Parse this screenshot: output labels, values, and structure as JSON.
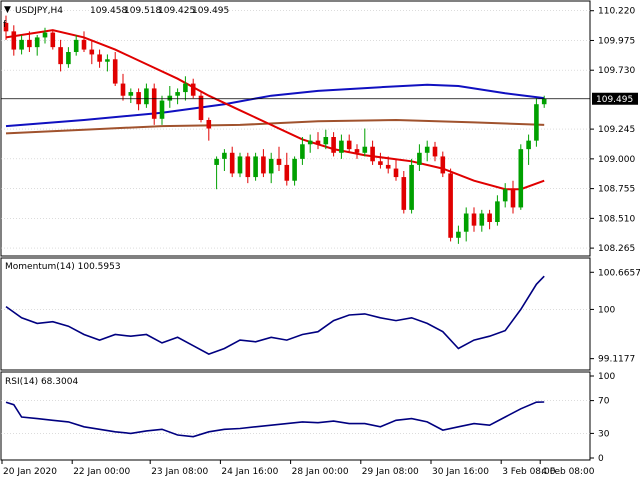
{
  "chart_data": {
    "type": "candlestick",
    "header": {
      "symbol": "USDJPY,H4",
      "ohlc": [
        "109.458",
        "109.518",
        "109.425",
        "109.495"
      ]
    },
    "colors": {
      "up": "#00a000",
      "down": "#e00000",
      "sma_fast": "#e00000",
      "sma_mid": "#1010c0",
      "sma_slow": "#a0522d",
      "indicator": "#000080",
      "grid": "#c8c8c8",
      "frame": "#000000"
    },
    "price_panel": {
      "ylim": [
        108.2,
        110.3
      ],
      "ticks": [
        "110.220",
        "109.975",
        "109.730",
        "109.495",
        "109.245",
        "109.000",
        "108.755",
        "108.510",
        "108.265"
      ],
      "current": "109.495",
      "current_value": 109.495,
      "candles": [
        [
          110.12,
          110.18,
          109.98,
          110.05
        ],
        [
          110.05,
          110.1,
          109.85,
          109.9
        ],
        [
          109.9,
          110.02,
          109.86,
          109.98
        ],
        [
          109.98,
          110.05,
          109.88,
          109.92
        ],
        [
          109.92,
          110.02,
          109.85,
          110.0
        ],
        [
          110.0,
          110.08,
          109.95,
          110.04
        ],
        [
          110.04,
          110.06,
          109.9,
          109.92
        ],
        [
          109.92,
          109.98,
          109.72,
          109.78
        ],
        [
          109.78,
          109.92,
          109.75,
          109.88
        ],
        [
          109.88,
          110.02,
          109.85,
          109.98
        ],
        [
          109.98,
          110.05,
          109.88,
          109.9
        ],
        [
          109.9,
          109.98,
          109.78,
          109.86
        ],
        [
          109.86,
          109.9,
          109.75,
          109.8
        ],
        [
          109.8,
          109.86,
          109.72,
          109.82
        ],
        [
          109.82,
          109.88,
          109.6,
          109.62
        ],
        [
          109.62,
          109.7,
          109.48,
          109.52
        ],
        [
          109.52,
          109.58,
          109.46,
          109.55
        ],
        [
          109.55,
          109.58,
          109.4,
          109.45
        ],
        [
          109.45,
          109.62,
          109.42,
          109.58
        ],
        [
          109.58,
          109.62,
          109.28,
          109.33
        ],
        [
          109.33,
          109.52,
          109.28,
          109.48
        ],
        [
          109.48,
          109.6,
          109.42,
          109.52
        ],
        [
          109.52,
          109.58,
          109.45,
          109.55
        ],
        [
          109.55,
          109.68,
          109.48,
          109.62
        ],
        [
          109.62,
          109.66,
          109.5,
          109.52
        ],
        [
          109.52,
          109.56,
          109.3,
          109.32
        ],
        [
          109.32,
          109.34,
          109.15,
          109.25
        ],
        [
          108.95,
          109.02,
          108.75,
          109.0
        ],
        [
          109.0,
          109.08,
          108.9,
          109.05
        ],
        [
          109.05,
          109.1,
          108.85,
          108.88
        ],
        [
          108.88,
          109.05,
          108.85,
          109.02
        ],
        [
          109.02,
          109.05,
          108.8,
          108.85
        ],
        [
          108.85,
          109.05,
          108.82,
          109.02
        ],
        [
          109.02,
          109.08,
          108.85,
          108.88
        ],
        [
          108.88,
          109.05,
          108.8,
          109.0
        ],
        [
          109.0,
          109.1,
          108.9,
          108.95
        ],
        [
          108.95,
          109.05,
          108.78,
          108.82
        ],
        [
          108.82,
          109.02,
          108.78,
          109.0
        ],
        [
          109.0,
          109.18,
          108.95,
          109.12
        ],
        [
          109.12,
          109.2,
          109.05,
          109.15
        ],
        [
          109.15,
          109.22,
          109.08,
          109.12
        ],
        [
          109.12,
          109.24,
          109.08,
          109.18
        ],
        [
          109.18,
          109.22,
          109.02,
          109.05
        ],
        [
          109.05,
          109.2,
          109.0,
          109.15
        ],
        [
          109.15,
          109.2,
          109.05,
          109.08
        ],
        [
          109.08,
          109.12,
          109.0,
          109.05
        ],
        [
          109.05,
          109.25,
          109.02,
          109.1
        ],
        [
          109.1,
          109.15,
          108.95,
          108.98
        ],
        [
          108.98,
          109.05,
          108.92,
          108.95
        ],
        [
          108.95,
          109.02,
          108.88,
          108.92
        ],
        [
          108.92,
          109.0,
          108.82,
          108.85
        ],
        [
          108.85,
          108.9,
          108.55,
          108.58
        ],
        [
          108.58,
          109.0,
          108.55,
          108.95
        ],
        [
          108.95,
          109.12,
          108.9,
          109.05
        ],
        [
          109.05,
          109.15,
          108.98,
          109.1
        ],
        [
          109.1,
          109.14,
          108.98,
          109.02
        ],
        [
          109.02,
          109.06,
          108.85,
          108.88
        ],
        [
          108.88,
          108.92,
          108.32,
          108.35
        ],
        [
          108.35,
          108.45,
          108.3,
          108.4
        ],
        [
          108.4,
          108.6,
          108.32,
          108.55
        ],
        [
          108.55,
          108.6,
          108.4,
          108.45
        ],
        [
          108.45,
          108.58,
          108.4,
          108.55
        ],
        [
          108.55,
          108.58,
          108.42,
          108.48
        ],
        [
          108.48,
          108.7,
          108.45,
          108.65
        ],
        [
          108.65,
          108.8,
          108.6,
          108.75
        ],
        [
          108.75,
          108.82,
          108.55,
          108.6
        ],
        [
          108.6,
          109.12,
          108.58,
          109.08
        ],
        [
          109.08,
          109.2,
          108.95,
          109.15
        ],
        [
          109.15,
          109.5,
          109.1,
          109.45
        ],
        [
          109.45,
          109.52,
          109.42,
          109.495
        ]
      ],
      "sma_fast": [
        [
          0,
          110.0
        ],
        [
          6,
          110.06
        ],
        [
          10,
          110.0
        ],
        [
          14,
          109.9
        ],
        [
          18,
          109.78
        ],
        [
          22,
          109.66
        ],
        [
          26,
          109.52
        ],
        [
          30,
          109.4
        ],
        [
          34,
          109.28
        ],
        [
          38,
          109.16
        ],
        [
          42,
          109.08
        ],
        [
          46,
          109.03
        ],
        [
          52,
          108.98
        ],
        [
          56,
          108.92
        ],
        [
          60,
          108.82
        ],
        [
          64,
          108.75
        ],
        [
          66,
          108.75
        ],
        [
          69,
          108.82
        ]
      ],
      "sma_mid": [
        [
          0,
          109.27
        ],
        [
          10,
          109.32
        ],
        [
          20,
          109.38
        ],
        [
          28,
          109.45
        ],
        [
          34,
          109.52
        ],
        [
          40,
          109.56
        ],
        [
          48,
          109.59
        ],
        [
          54,
          109.61
        ],
        [
          58,
          109.6
        ],
        [
          64,
          109.54
        ],
        [
          69,
          109.5
        ]
      ],
      "sma_slow": [
        [
          0,
          109.21
        ],
        [
          10,
          109.24
        ],
        [
          20,
          109.27
        ],
        [
          30,
          109.28
        ],
        [
          40,
          109.31
        ],
        [
          50,
          109.32
        ],
        [
          60,
          109.3
        ],
        [
          69,
          109.28
        ]
      ]
    },
    "momentum_panel": {
      "label": "Momentum(14) 100.5953",
      "ylim": [
        98.95,
        100.85
      ],
      "ticks": [
        "100.6657",
        "100",
        "99.1177"
      ],
      "values": [
        [
          0,
          100.05
        ],
        [
          2,
          99.85
        ],
        [
          4,
          99.75
        ],
        [
          6,
          99.78
        ],
        [
          8,
          99.7
        ],
        [
          10,
          99.55
        ],
        [
          12,
          99.45
        ],
        [
          14,
          99.55
        ],
        [
          16,
          99.52
        ],
        [
          18,
          99.55
        ],
        [
          20,
          99.4
        ],
        [
          22,
          99.5
        ],
        [
          24,
          99.35
        ],
        [
          26,
          99.2
        ],
        [
          28,
          99.3
        ],
        [
          30,
          99.45
        ],
        [
          32,
          99.42
        ],
        [
          34,
          99.5
        ],
        [
          36,
          99.45
        ],
        [
          38,
          99.55
        ],
        [
          40,
          99.6
        ],
        [
          42,
          99.8
        ],
        [
          44,
          99.9
        ],
        [
          46,
          99.92
        ],
        [
          48,
          99.85
        ],
        [
          50,
          99.8
        ],
        [
          52,
          99.85
        ],
        [
          54,
          99.75
        ],
        [
          56,
          99.6
        ],
        [
          58,
          99.3
        ],
        [
          60,
          99.45
        ],
        [
          62,
          99.52
        ],
        [
          64,
          99.62
        ],
        [
          66,
          100.0
        ],
        [
          68,
          100.45
        ],
        [
          69,
          100.5953
        ]
      ]
    },
    "rsi_panel": {
      "label": "RSI(14) 68.3004",
      "ylim": [
        0,
        100
      ],
      "ticks": [
        "100",
        "70",
        "30",
        "0"
      ],
      "values": [
        [
          0,
          68
        ],
        [
          1,
          65
        ],
        [
          2,
          50
        ],
        [
          4,
          48
        ],
        [
          6,
          46
        ],
        [
          8,
          44
        ],
        [
          10,
          38
        ],
        [
          12,
          35
        ],
        [
          14,
          32
        ],
        [
          16,
          30
        ],
        [
          18,
          33
        ],
        [
          20,
          35
        ],
        [
          22,
          28
        ],
        [
          24,
          26
        ],
        [
          26,
          32
        ],
        [
          28,
          35
        ],
        [
          30,
          36
        ],
        [
          32,
          38
        ],
        [
          34,
          40
        ],
        [
          36,
          42
        ],
        [
          38,
          44
        ],
        [
          40,
          43
        ],
        [
          42,
          45
        ],
        [
          44,
          42
        ],
        [
          46,
          42
        ],
        [
          48,
          38
        ],
        [
          50,
          46
        ],
        [
          52,
          48
        ],
        [
          54,
          44
        ],
        [
          56,
          34
        ],
        [
          58,
          38
        ],
        [
          60,
          42
        ],
        [
          62,
          40
        ],
        [
          64,
          50
        ],
        [
          66,
          60
        ],
        [
          68,
          68
        ],
        [
          69,
          68.3
        ]
      ]
    },
    "time_axis": {
      "labels": [
        "20 Jan 2020",
        "22 Jan 00:00",
        "23 Jan 08:00",
        "24 Jan 16:00",
        "28 Jan 00:00",
        "29 Jan 08:00",
        "30 Jan 16:00",
        "3 Feb 08:00",
        "4 Feb 08:00"
      ],
      "label_index": [
        0,
        9,
        19,
        28,
        37,
        46,
        55,
        64,
        69
      ]
    }
  }
}
